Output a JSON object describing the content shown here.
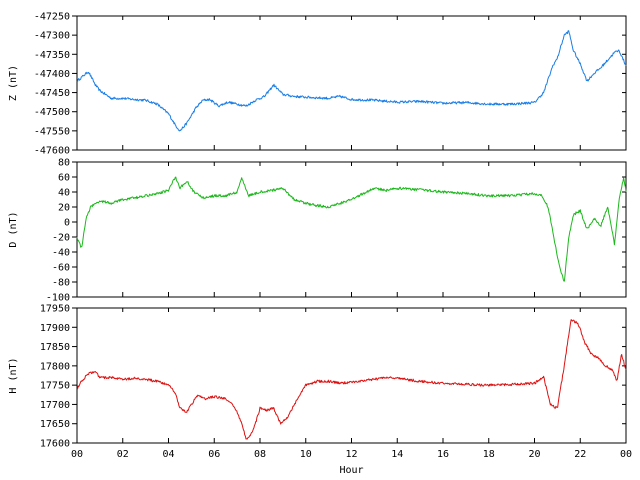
{
  "chart_data": [
    {
      "type": "line",
      "ylabel": "Z (nT)",
      "ylim": [
        -47600,
        -47250
      ],
      "yticks": [
        -47600,
        -47550,
        -47500,
        -47450,
        -47400,
        -47350,
        -47300,
        -47250
      ],
      "xlim": [
        0,
        24
      ],
      "grid": false,
      "series": [
        {
          "color": "#1a7ee6",
          "x": [
            0,
            0.2,
            0.5,
            0.8,
            1.0,
            1.5,
            2.0,
            2.5,
            3.0,
            3.5,
            4.0,
            4.3,
            4.5,
            4.8,
            5.2,
            5.5,
            5.8,
            6.2,
            6.6,
            7.0,
            7.4,
            7.8,
            8.2,
            8.6,
            9.0,
            9.5,
            10.0,
            11.0,
            11.5,
            12.0,
            13.0,
            14.0,
            15.0,
            16.0,
            17.0,
            18.0,
            19.0,
            19.5,
            20.0,
            20.4,
            20.8,
            21.0,
            21.3,
            21.5,
            21.7,
            22.0,
            22.3,
            22.6,
            22.9,
            23.2,
            23.5,
            23.7,
            24.0
          ],
          "y": [
            -47420,
            -47410,
            -47395,
            -47430,
            -47445,
            -47465,
            -47465,
            -47468,
            -47470,
            -47480,
            -47505,
            -47535,
            -47550,
            -47530,
            -47490,
            -47470,
            -47468,
            -47485,
            -47475,
            -47480,
            -47485,
            -47470,
            -47460,
            -47430,
            -47455,
            -47460,
            -47462,
            -47465,
            -47460,
            -47468,
            -47470,
            -47475,
            -47473,
            -47478,
            -47476,
            -47480,
            -47480,
            -47478,
            -47476,
            -47450,
            -47380,
            -47360,
            -47300,
            -47290,
            -47340,
            -47375,
            -47420,
            -47400,
            -47385,
            -47365,
            -47345,
            -47340,
            -47380
          ]
        }
      ]
    },
    {
      "type": "line",
      "ylabel": "D (nT)",
      "ylim": [
        -100,
        80
      ],
      "yticks": [
        -100,
        -80,
        -60,
        -40,
        -20,
        0,
        20,
        40,
        60,
        80
      ],
      "xlim": [
        0,
        24
      ],
      "grid": false,
      "series": [
        {
          "color": "#1cb81c",
          "x": [
            0,
            0.2,
            0.4,
            0.6,
            0.8,
            1.0,
            1.5,
            2.0,
            2.5,
            3.0,
            3.5,
            4.0,
            4.3,
            4.5,
            4.8,
            5.1,
            5.5,
            6.0,
            6.5,
            7.0,
            7.2,
            7.5,
            8.0,
            8.5,
            9.0,
            9.5,
            10.0,
            10.5,
            11.0,
            11.5,
            12.0,
            12.5,
            13.0,
            13.5,
            14.0,
            15.0,
            16.0,
            17.0,
            18.0,
            19.0,
            20.0,
            20.3,
            20.6,
            20.9,
            21.1,
            21.3,
            21.5,
            21.7,
            22.0,
            22.3,
            22.6,
            22.9,
            23.2,
            23.5,
            23.7,
            23.9,
            24.0
          ],
          "y": [
            -20,
            -35,
            5,
            20,
            25,
            28,
            25,
            30,
            32,
            35,
            38,
            42,
            60,
            45,
            55,
            40,
            32,
            35,
            35,
            40,
            58,
            35,
            40,
            42,
            45,
            30,
            25,
            22,
            20,
            25,
            30,
            38,
            45,
            42,
            45,
            43,
            40,
            38,
            35,
            35,
            38,
            35,
            20,
            -30,
            -60,
            -80,
            -20,
            10,
            15,
            -10,
            5,
            -5,
            20,
            -30,
            30,
            60,
            40
          ]
        }
      ]
    },
    {
      "type": "line",
      "ylabel": "H (nT)",
      "xlabel": "Hour",
      "ylim": [
        17600,
        17950
      ],
      "yticks": [
        17600,
        17650,
        17700,
        17750,
        17800,
        17850,
        17900,
        17950
      ],
      "xlim": [
        0,
        24
      ],
      "xticks": [
        "00",
        "02",
        "04",
        "06",
        "08",
        "10",
        "12",
        "14",
        "16",
        "18",
        "20",
        "22",
        "00"
      ],
      "grid": false,
      "series": [
        {
          "color": "#dd1111",
          "x": [
            0,
            0.2,
            0.5,
            0.8,
            1.0,
            1.5,
            2.0,
            2.5,
            3.0,
            3.5,
            4.0,
            4.3,
            4.5,
            4.8,
            5.0,
            5.3,
            5.6,
            6.0,
            6.5,
            6.8,
            7.0,
            7.2,
            7.4,
            7.6,
            7.8,
            8.0,
            8.3,
            8.6,
            8.9,
            9.2,
            9.5,
            10.0,
            10.5,
            11.0,
            11.5,
            12.0,
            13.0,
            13.5,
            14.0,
            15.0,
            16.0,
            17.0,
            18.0,
            19.0,
            20.0,
            20.4,
            20.7,
            21.0,
            21.3,
            21.6,
            21.9,
            22.2,
            22.5,
            22.8,
            23.1,
            23.4,
            23.6,
            23.8,
            24.0
          ],
          "y": [
            17740,
            17760,
            17780,
            17785,
            17770,
            17770,
            17765,
            17768,
            17765,
            17760,
            17750,
            17730,
            17690,
            17680,
            17700,
            17725,
            17715,
            17720,
            17715,
            17700,
            17680,
            17650,
            17610,
            17620,
            17650,
            17690,
            17685,
            17690,
            17650,
            17665,
            17700,
            17750,
            17760,
            17760,
            17755,
            17758,
            17765,
            17770,
            17768,
            17760,
            17755,
            17752,
            17750,
            17752,
            17755,
            17770,
            17700,
            17690,
            17800,
            17920,
            17910,
            17860,
            17830,
            17820,
            17800,
            17790,
            17760,
            17830,
            17790
          ]
        }
      ]
    }
  ]
}
